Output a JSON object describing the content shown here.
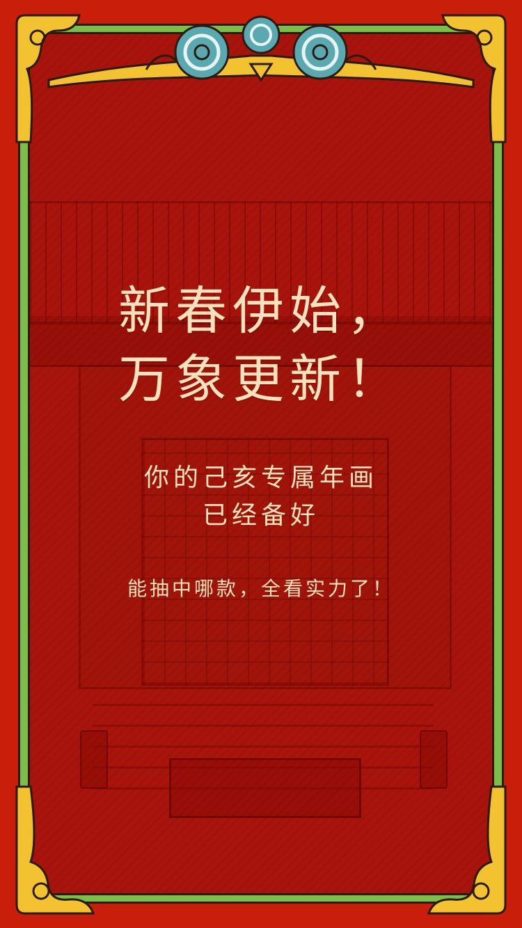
{
  "colors": {
    "background_red": "#c81e0a",
    "panel_red": "#a8140c",
    "frame_green": "#7bbf4a",
    "ornament_gold": "#f2c231",
    "wave_teal": "#5aa8b0",
    "text_cream": "#f6e3bd"
  },
  "decorations": {
    "top_ornament_icon": "cloud-wave-ornament-icon",
    "corner_icon": "gold-scroll-corner-icon",
    "background_icon": "palace-courtyard-illustration-icon"
  },
  "greeting": {
    "line1": "新春伊始，",
    "line2": "万象更新！"
  },
  "message": {
    "line1": "你的己亥专属年画",
    "line2": "已经备好"
  },
  "tagline": "能抽中哪款，全看实力了！"
}
